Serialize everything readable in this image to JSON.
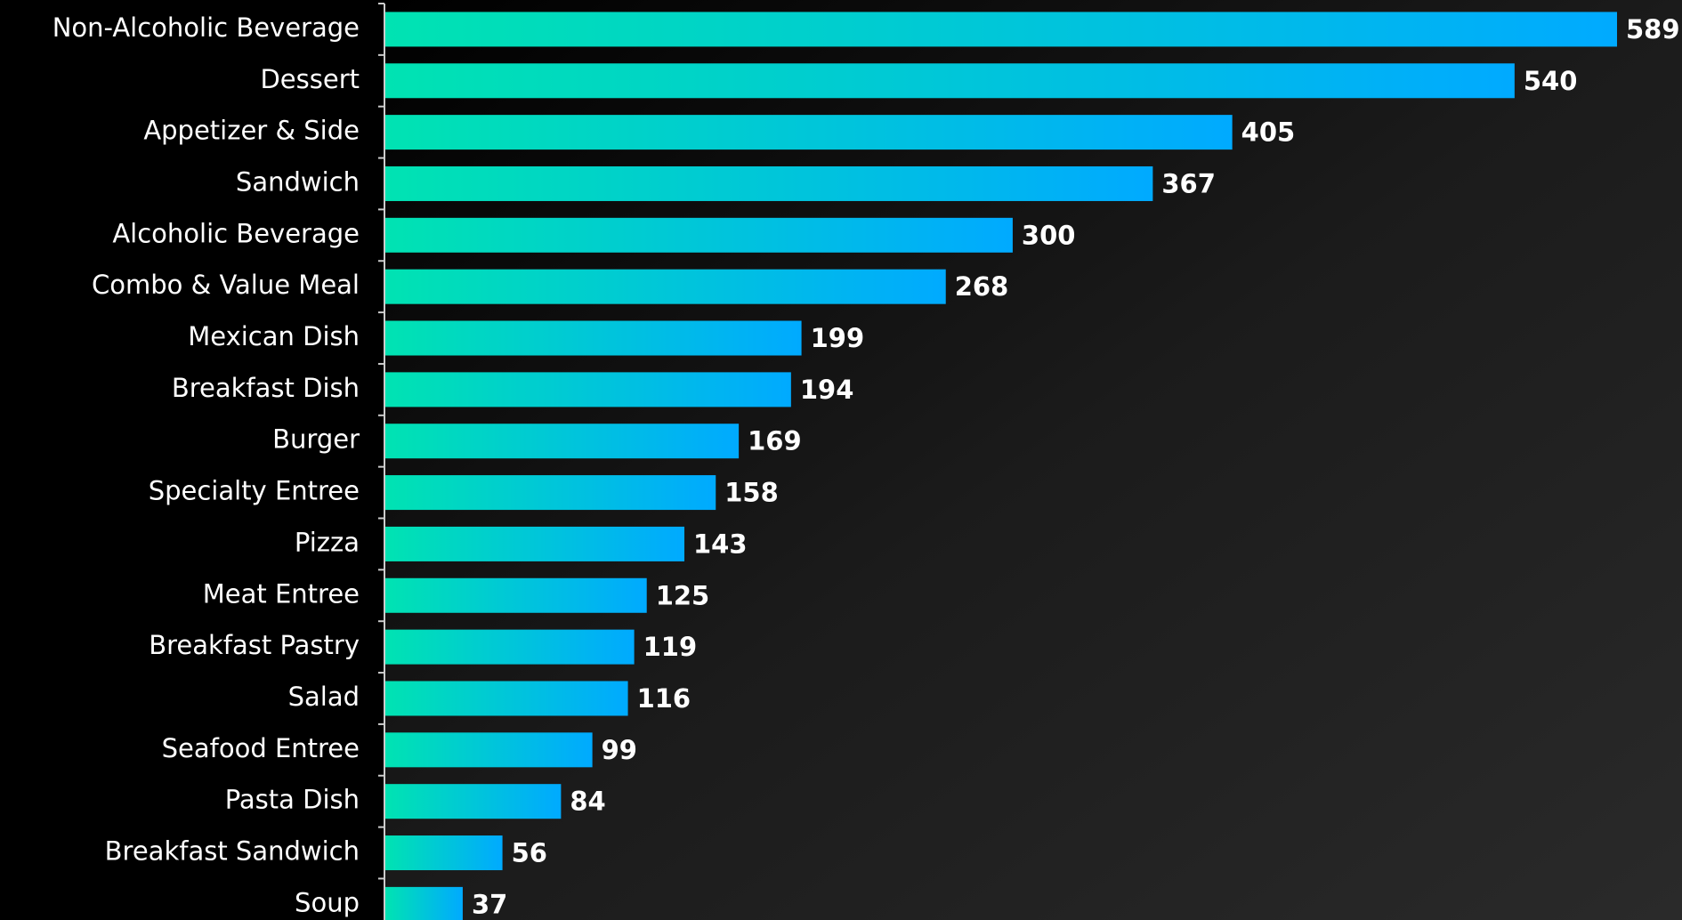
{
  "chart_data": {
    "type": "barh",
    "categories": [
      "Non-Alcoholic Beverage",
      "Dessert",
      "Appetizer & Side",
      "Sandwich",
      "Alcoholic Beverage",
      "Combo & Value Meal",
      "Mexican Dish",
      "Breakfast Dish",
      "Burger",
      "Specialty Entree",
      "Pizza",
      "Meat Entree",
      "Breakfast Pastry",
      "Salad",
      "Seafood Entree",
      "Pasta Dish",
      "Breakfast Sandwich",
      "Soup"
    ],
    "values": [
      589,
      540,
      405,
      367,
      300,
      268,
      199,
      194,
      169,
      158,
      143,
      125,
      119,
      116,
      99,
      84,
      56,
      37
    ],
    "gradient": [
      "#00e3b2",
      "#00aaff"
    ]
  }
}
